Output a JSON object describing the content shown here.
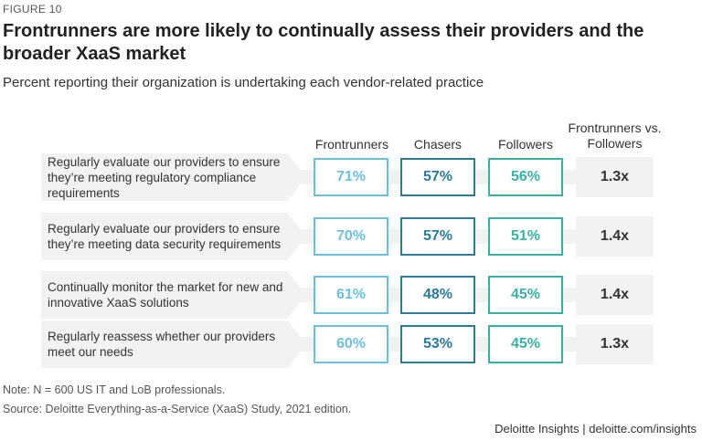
{
  "figure_label": "FIGURE 10",
  "title": "Frontrunners are more likely to continually assess their providers and the broader XaaS market",
  "subtitle": "Percent reporting their organization is undertaking each vendor-related practice",
  "colors": {
    "frontrunners": "#6cc0dc",
    "chasers": "#2a7a9a",
    "followers": "#38b3a3",
    "band": "#f2f2f2"
  },
  "chart_data": {
    "type": "table",
    "columns": [
      "Frontrunners",
      "Chasers",
      "Followers",
      "Frontrunners vs. Followers"
    ],
    "rows": [
      {
        "label": "Regularly evaluate our providers to ensure they’re meeting regulatory compliance requirements",
        "frontrunners": "71%",
        "chasers": "57%",
        "followers": "56%",
        "ratio": "1.3x"
      },
      {
        "label": "Regularly evaluate our providers to ensure they’re meeting data security requirements",
        "frontrunners": "70%",
        "chasers": "57%",
        "followers": "51%",
        "ratio": "1.4x"
      },
      {
        "label": "Continually monitor the market for new and innovative XaaS solutions",
        "frontrunners": "61%",
        "chasers": "48%",
        "followers": "45%",
        "ratio": "1.4x"
      },
      {
        "label": "Regularly reassess whether our providers meet our needs",
        "frontrunners": "60%",
        "chasers": "53%",
        "followers": "45%",
        "ratio": "1.3x"
      }
    ]
  },
  "note": "Note: N = 600 US IT and LoB professionals.",
  "source": "Source: Deloitte Everything-as-a-Service (XaaS) Study, 2021 edition.",
  "brand": "Deloitte Insights | deloitte.com/insights"
}
